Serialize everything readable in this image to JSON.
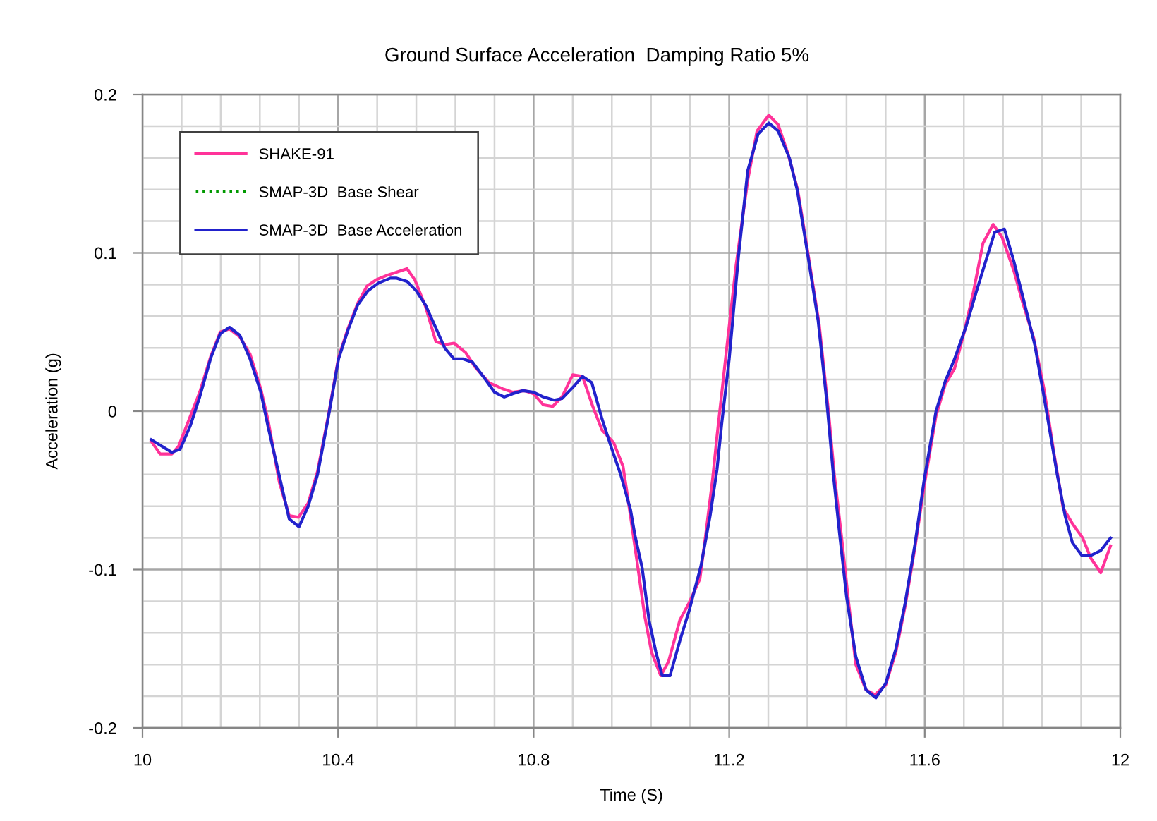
{
  "chart_data": {
    "type": "line",
    "title": "Ground Surface Acceleration  Damping Ratio 5%",
    "xlabel": "Time (S)",
    "ylabel": "Acceleration (g)",
    "xlim": [
      10,
      12
    ],
    "xticks": [
      10,
      {
        "value": 10.08,
        "label": null
      },
      {
        "value": 10.16,
        "label": null
      },
      {
        "value": 10.24,
        "label": null
      },
      {
        "value": 10.32,
        "label": null
      },
      10.4,
      {
        "value": 10.48,
        "label": null
      },
      {
        "value": 10.56,
        "label": null
      },
      {
        "value": 10.64,
        "label": null
      },
      {
        "value": 10.72,
        "label": null
      },
      10.8,
      {
        "value": 10.88,
        "label": null
      },
      {
        "value": 10.96,
        "label": null
      },
      {
        "value": 11.04,
        "label": null
      },
      {
        "value": 11.12,
        "label": null
      },
      11.2,
      {
        "value": 11.28,
        "label": null
      },
      {
        "value": 11.36,
        "label": null
      },
      {
        "value": 11.44,
        "label": null
      },
      {
        "value": 11.52,
        "label": null
      },
      11.6,
      {
        "value": 11.68,
        "label": null
      },
      {
        "value": 11.76,
        "label": null
      },
      {
        "value": 11.84,
        "label": null
      },
      {
        "value": 11.92,
        "label": null
      },
      12
    ],
    "ylim": [
      -0.2,
      0.2
    ],
    "yticks": [
      -0.2,
      {
        "value": -0.18,
        "label": null
      },
      {
        "value": -0.16,
        "label": null
      },
      {
        "value": -0.14,
        "label": null
      },
      {
        "value": -0.12,
        "label": null
      },
      -0.1,
      {
        "value": -0.08,
        "label": null
      },
      {
        "value": -0.06,
        "label": null
      },
      {
        "value": -0.04,
        "label": null
      },
      {
        "value": -0.02,
        "label": null
      },
      0,
      {
        "value": 0.02,
        "label": null
      },
      {
        "value": 0.04,
        "label": null
      },
      {
        "value": 0.06,
        "label": null
      },
      {
        "value": 0.08,
        "label": null
      },
      0.1,
      {
        "value": 0.12,
        "label": null
      },
      {
        "value": 0.14,
        "label": null
      },
      {
        "value": 0.16,
        "label": null
      },
      {
        "value": 0.18,
        "label": null
      },
      0.2
    ],
    "grid": true,
    "legend": "top left",
    "series": [
      {
        "name": "SHAKE-91",
        "color": "#ff3399",
        "line_style": "solid",
        "x": [
          10.018,
          10.036,
          10.06,
          10.074,
          10.093,
          10.117,
          10.14,
          10.159,
          10.178,
          10.199,
          10.22,
          10.242,
          10.257,
          10.28,
          10.3,
          10.319,
          10.339,
          10.358,
          10.38,
          10.401,
          10.42,
          10.44,
          10.459,
          10.478,
          10.502,
          10.541,
          10.557,
          10.579,
          10.6,
          10.618,
          10.637,
          10.661,
          10.68,
          10.709,
          10.738,
          10.757,
          10.781,
          10.8,
          10.82,
          10.839,
          10.858,
          10.88,
          10.9,
          10.921,
          10.94,
          10.964,
          10.983,
          10.998,
          11.012,
          11.027,
          11.041,
          11.06,
          11.076,
          11.099,
          11.118,
          11.14,
          11.152,
          11.166,
          11.175,
          11.195,
          11.214,
          11.238,
          11.257,
          11.281,
          11.3,
          11.32,
          11.34,
          11.36,
          11.384,
          11.403,
          11.415,
          11.43,
          11.444,
          11.459,
          11.48,
          11.498,
          11.52,
          11.541,
          11.56,
          11.58,
          11.6,
          11.623,
          11.642,
          11.661,
          11.68,
          11.7,
          11.719,
          11.74,
          11.758,
          11.782,
          11.8,
          11.823,
          11.844,
          11.864,
          11.883,
          11.902,
          11.923,
          11.94,
          11.96,
          11.98
        ],
        "values": [
          -0.019,
          -0.027,
          -0.027,
          -0.022,
          -0.007,
          0.012,
          0.035,
          0.05,
          0.052,
          0.047,
          0.036,
          0.014,
          -0.006,
          -0.045,
          -0.066,
          -0.067,
          -0.058,
          -0.038,
          -0.003,
          0.034,
          0.052,
          0.068,
          0.079,
          0.083,
          0.086,
          0.09,
          0.083,
          0.066,
          0.044,
          0.042,
          0.043,
          0.037,
          0.028,
          0.018,
          0.014,
          0.012,
          0.013,
          0.011,
          0.004,
          0.003,
          0.009,
          0.023,
          0.022,
          0.003,
          -0.012,
          -0.02,
          -0.035,
          -0.066,
          -0.096,
          -0.129,
          -0.152,
          -0.167,
          -0.158,
          -0.132,
          -0.121,
          -0.106,
          -0.078,
          -0.043,
          -0.016,
          0.04,
          0.092,
          0.146,
          0.177,
          0.187,
          0.181,
          0.163,
          0.14,
          0.102,
          0.055,
          0.0,
          -0.04,
          -0.08,
          -0.12,
          -0.16,
          -0.176,
          -0.179,
          -0.173,
          -0.152,
          -0.123,
          -0.086,
          -0.045,
          -0.003,
          0.017,
          0.027,
          0.049,
          0.076,
          0.106,
          0.118,
          0.11,
          0.089,
          0.069,
          0.046,
          0.014,
          -0.026,
          -0.061,
          -0.071,
          -0.08,
          -0.093,
          -0.102,
          -0.085
        ]
      },
      {
        "name": "SMAP-3D  Base Shear",
        "color": "#009900",
        "line_style": "dotted"
      },
      {
        "name": "SMAP-3D  Base Acceleration",
        "color": "#2222cc",
        "line_style": "solid",
        "x": [
          10.018,
          10.06,
          10.077,
          10.098,
          10.117,
          10.14,
          10.159,
          10.178,
          10.199,
          10.22,
          10.242,
          10.257,
          10.3,
          10.32,
          10.339,
          10.358,
          10.38,
          10.401,
          10.42,
          10.44,
          10.461,
          10.483,
          10.507,
          10.52,
          10.541,
          10.56,
          10.579,
          10.598,
          10.618,
          10.637,
          10.656,
          10.675,
          10.699,
          10.72,
          10.74,
          10.757,
          10.778,
          10.8,
          10.82,
          10.842,
          10.858,
          10.88,
          10.9,
          10.919,
          10.94,
          10.959,
          10.978,
          10.998,
          11.007,
          11.022,
          11.036,
          11.05,
          11.063,
          11.079,
          11.1,
          11.118,
          11.142,
          11.161,
          11.175,
          11.185,
          11.2,
          11.219,
          11.238,
          11.259,
          11.281,
          11.3,
          11.323,
          11.339,
          11.358,
          11.382,
          11.4,
          11.413,
          11.426,
          11.44,
          11.459,
          11.48,
          11.5,
          11.52,
          11.541,
          11.56,
          11.58,
          11.599,
          11.623,
          11.642,
          11.661,
          11.685,
          11.705,
          11.724,
          11.743,
          11.763,
          11.782,
          11.8,
          11.825,
          11.844,
          11.871,
          11.887,
          11.902,
          11.921,
          11.94,
          11.96,
          11.98
        ],
        "values": [
          -0.018,
          -0.026,
          -0.024,
          -0.009,
          0.009,
          0.034,
          0.049,
          0.053,
          0.048,
          0.033,
          0.012,
          -0.01,
          -0.068,
          -0.073,
          -0.06,
          -0.04,
          -0.004,
          0.033,
          0.051,
          0.067,
          0.076,
          0.081,
          0.084,
          0.084,
          0.082,
          0.076,
          0.067,
          0.054,
          0.04,
          0.033,
          0.033,
          0.031,
          0.021,
          0.012,
          0.009,
          0.011,
          0.013,
          0.012,
          0.009,
          0.007,
          0.008,
          0.015,
          0.022,
          0.018,
          -0.005,
          -0.023,
          -0.04,
          -0.062,
          -0.078,
          -0.099,
          -0.132,
          -0.152,
          -0.167,
          -0.167,
          -0.144,
          -0.126,
          -0.098,
          -0.066,
          -0.037,
          -0.007,
          0.033,
          0.098,
          0.152,
          0.175,
          0.182,
          0.177,
          0.16,
          0.14,
          0.104,
          0.057,
          0.005,
          -0.04,
          -0.078,
          -0.117,
          -0.155,
          -0.176,
          -0.181,
          -0.172,
          -0.15,
          -0.121,
          -0.084,
          -0.043,
          0.0,
          0.019,
          0.033,
          0.054,
          0.075,
          0.094,
          0.113,
          0.115,
          0.095,
          0.073,
          0.042,
          0.009,
          -0.04,
          -0.066,
          -0.083,
          -0.091,
          -0.091,
          -0.088,
          -0.08
        ]
      }
    ]
  }
}
